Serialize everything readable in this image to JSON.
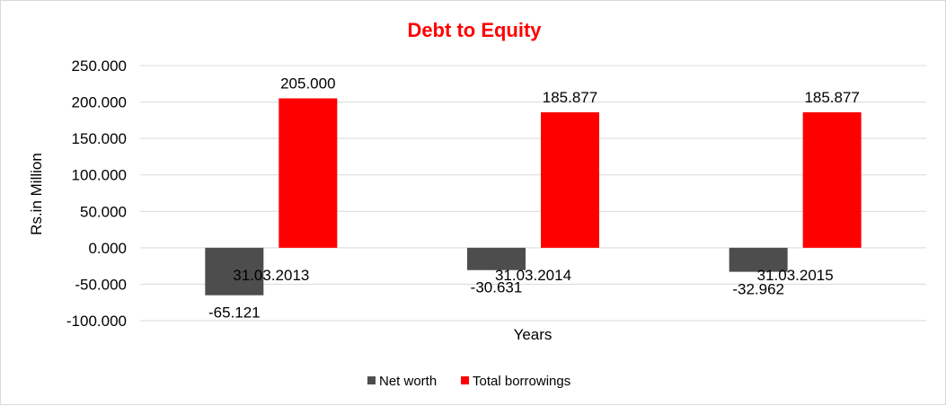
{
  "chart_data": {
    "type": "bar",
    "title": "Debt to Equity",
    "xlabel": "Years",
    "ylabel": "Rs.in Million",
    "categories": [
      "31.03.2013",
      "31.03.2014",
      "31.03.2015"
    ],
    "series": [
      {
        "name": "Net worth",
        "values": [
          -65.121,
          -30.631,
          -32.962
        ],
        "labels": [
          "-65.121",
          "-30.631",
          "-32.962"
        ],
        "color": "#4d4d4d"
      },
      {
        "name": "Total borrowings",
        "values": [
          205.0,
          185.877,
          185.877
        ],
        "labels": [
          "205.000",
          "185.877",
          "185.877"
        ],
        "color": "#ff0000"
      }
    ],
    "ylim": [
      -100,
      250
    ],
    "yticks": [
      250,
      200,
      150,
      100,
      50,
      0,
      -50,
      -100
    ],
    "ytick_labels": [
      "250.000",
      "200.000",
      "150.000",
      "100.000",
      "50.000",
      "0.000",
      "-50.000",
      "-100.000"
    ],
    "grid": true,
    "legend": "bottom",
    "title_color": "#ff0000",
    "gridline_color": "#d9d9d9"
  }
}
